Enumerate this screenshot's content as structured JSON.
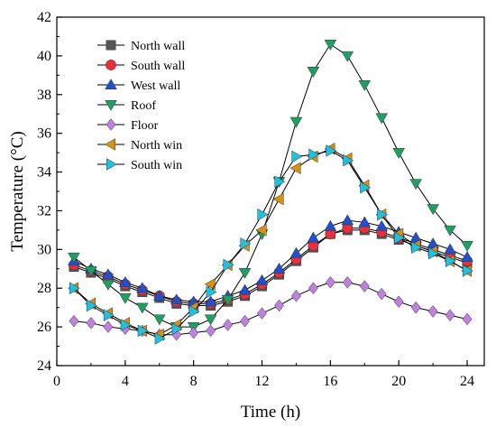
{
  "chart_data": {
    "type": "line",
    "xlabel": "Time (h)",
    "ylabel": "Temperature (°C)",
    "xlim": [
      0,
      25
    ],
    "ylim": [
      24,
      42
    ],
    "xticks": [
      0,
      4,
      8,
      12,
      16,
      20,
      24
    ],
    "yticks": [
      24,
      26,
      28,
      30,
      32,
      34,
      36,
      38,
      40,
      42
    ],
    "grid": false,
    "legend_position": "top-left",
    "x": [
      1,
      2,
      3,
      4,
      5,
      6,
      7,
      8,
      9,
      10,
      11,
      12,
      13,
      14,
      15,
      16,
      17,
      18,
      19,
      20,
      21,
      22,
      23,
      24
    ],
    "series": [
      {
        "name": "North wall",
        "marker": "square",
        "color": "#555555",
        "values": [
          29.1,
          28.8,
          28.5,
          28.1,
          27.8,
          27.5,
          27.2,
          27.1,
          27.1,
          27.3,
          27.6,
          28.1,
          28.7,
          29.4,
          30.1,
          30.8,
          31.0,
          31.0,
          30.8,
          30.5,
          30.2,
          29.9,
          29.6,
          29.3
        ]
      },
      {
        "name": "South wall",
        "marker": "circle",
        "color": "#e8303a",
        "values": [
          29.2,
          28.9,
          28.6,
          28.2,
          27.9,
          27.6,
          27.3,
          27.2,
          27.2,
          27.4,
          27.7,
          28.2,
          28.8,
          29.5,
          30.2,
          30.8,
          31.1,
          31.1,
          30.9,
          30.6,
          30.3,
          30.0,
          29.7,
          29.4
        ]
      },
      {
        "name": "West wall",
        "marker": "triangle-up",
        "color": "#2050d0",
        "values": [
          29.4,
          29.0,
          28.7,
          28.3,
          28.0,
          27.6,
          27.4,
          27.3,
          27.3,
          27.6,
          27.9,
          28.4,
          29.0,
          29.8,
          30.6,
          31.2,
          31.5,
          31.4,
          31.2,
          30.9,
          30.6,
          30.3,
          30.0,
          29.6
        ]
      },
      {
        "name": "Roof",
        "marker": "triangle-down",
        "color": "#20a060",
        "values": [
          29.6,
          28.9,
          28.2,
          27.5,
          27.0,
          26.4,
          26.0,
          26.0,
          26.4,
          27.4,
          28.8,
          30.8,
          33.5,
          36.6,
          39.2,
          40.6,
          40.0,
          38.5,
          36.8,
          35.0,
          33.4,
          32.1,
          31.0,
          30.2
        ]
      },
      {
        "name": "Floor",
        "marker": "diamond",
        "color": "#c080e0",
        "values": [
          26.3,
          26.2,
          26.0,
          25.9,
          25.8,
          25.6,
          25.6,
          25.7,
          25.8,
          26.1,
          26.3,
          26.7,
          27.1,
          27.6,
          28.0,
          28.3,
          28.3,
          28.1,
          27.7,
          27.3,
          27.0,
          26.8,
          26.6,
          26.4
        ]
      },
      {
        "name": "North win",
        "marker": "triangle-left",
        "color": "#d89010",
        "values": [
          28.0,
          27.2,
          26.7,
          26.2,
          25.8,
          25.6,
          26.1,
          27.0,
          28.2,
          29.2,
          30.2,
          31.0,
          32.6,
          34.2,
          34.8,
          35.2,
          34.7,
          33.3,
          31.8,
          30.8,
          30.2,
          29.9,
          29.4,
          28.9
        ]
      },
      {
        "name": "South win",
        "marker": "triangle-right",
        "color": "#20c0e0",
        "values": [
          28.0,
          27.1,
          26.6,
          26.1,
          25.8,
          25.4,
          25.9,
          26.8,
          27.8,
          29.2,
          30.3,
          31.8,
          33.5,
          34.8,
          34.9,
          35.1,
          34.6,
          33.2,
          31.8,
          30.6,
          30.1,
          29.8,
          29.4,
          28.9
        ]
      }
    ]
  }
}
